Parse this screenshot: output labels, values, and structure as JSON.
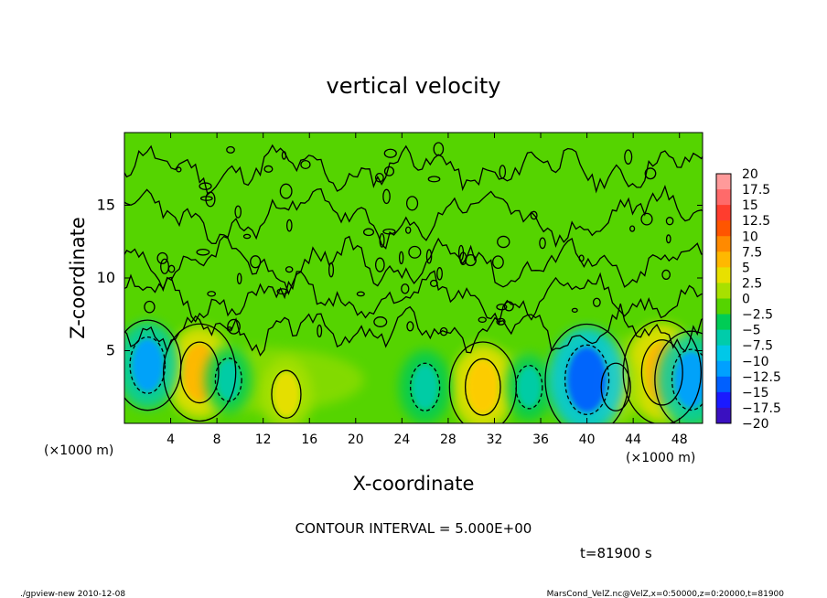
{
  "chart_data": {
    "type": "heatmap",
    "title": "vertical velocity",
    "xlabel": "X-coordinate",
    "ylabel": "Z-coordinate",
    "x_unit_left": "(×1000 m)",
    "x_unit_right": "(×1000 m)",
    "xlim": [
      0,
      50
    ],
    "ylim": [
      0,
      20
    ],
    "x_ticks": [
      "4",
      "8",
      "12",
      "16",
      "20",
      "24",
      "28",
      "32",
      "36",
      "40",
      "44",
      "48"
    ],
    "y_ticks": [
      "5",
      "10",
      "15"
    ],
    "contour_interval_text": "CONTOUR INTERVAL = 5.000E+00",
    "time_text": "t=81900 s",
    "colorbar": {
      "labels": [
        "20",
        "17.5",
        "15",
        "12.5",
        "10",
        "7.5",
        "5",
        "2.5",
        "0",
        "−2.5",
        "−5",
        "−7.5",
        "−10",
        "−12.5",
        "−15",
        "−17.5",
        "−20"
      ],
      "colors": [
        "#ff9a9a",
        "#ff6a6a",
        "#ff3d2e",
        "#ff5500",
        "#ff8a00",
        "#ffb800",
        "#e8e000",
        "#a8e000",
        "#55d400",
        "#00cc55",
        "#00ccaa",
        "#00c8e8",
        "#00a0ff",
        "#0060ff",
        "#1a1aff",
        "#3a10c0",
        "#5a10a0"
      ]
    },
    "features": [
      {
        "x": 6.5,
        "z": 3.5,
        "value": 8,
        "kind": "updraft"
      },
      {
        "x": 14.0,
        "z": 2.0,
        "value": 5,
        "kind": "updraft"
      },
      {
        "x": 31.0,
        "z": 2.5,
        "value": 7,
        "kind": "updraft"
      },
      {
        "x": 46.5,
        "z": 3.5,
        "value": 9,
        "kind": "updraft"
      },
      {
        "x": 42.5,
        "z": 2.5,
        "value": 5,
        "kind": "updraft"
      },
      {
        "x": 2.0,
        "z": 4.0,
        "value": -7,
        "kind": "downdraft"
      },
      {
        "x": 9.0,
        "z": 3.0,
        "value": -4,
        "kind": "downdraft"
      },
      {
        "x": 26.0,
        "z": 2.5,
        "value": -5,
        "kind": "downdraft"
      },
      {
        "x": 35.0,
        "z": 2.5,
        "value": -4,
        "kind": "downdraft"
      },
      {
        "x": 40.0,
        "z": 3.0,
        "value": -10,
        "kind": "downdraft"
      },
      {
        "x": 49.0,
        "z": 3.0,
        "value": -8,
        "kind": "downdraft"
      }
    ]
  },
  "footer": {
    "left": "./gpview-new 2010-12-08",
    "right": "MarsCond_VelZ.nc@VelZ,x=0:50000,z=0:20000,t=81900"
  },
  "background_color": "#55d400"
}
